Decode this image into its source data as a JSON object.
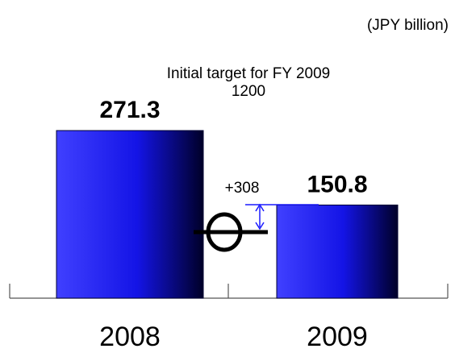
{
  "chart_data": {
    "type": "bar",
    "unit_label": "(JPY billion)",
    "target_label": "Initial target for FY 2009",
    "target_value": 1200,
    "difference_label": "+308",
    "categories": [
      "2008",
      "2009"
    ],
    "values": [
      271.3,
      150.8
    ],
    "color": "#1414e6"
  }
}
